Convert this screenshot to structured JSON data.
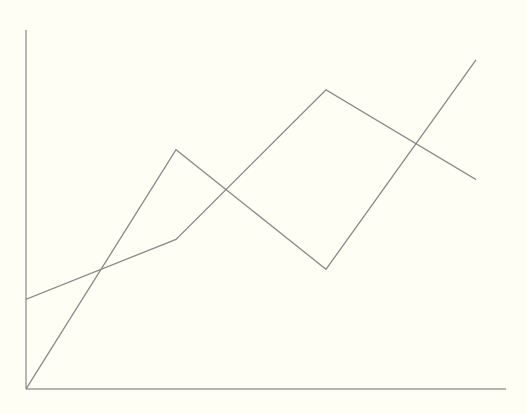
{
  "colors": {
    "background": "#fffef5",
    "axis": "#888888",
    "line": "#888888"
  },
  "chart_data": {
    "type": "line",
    "x": [
      0,
      1,
      2,
      3
    ],
    "series": [
      {
        "values": [
          3,
          5,
          10,
          7
        ]
      },
      {
        "values": [
          0,
          8,
          4,
          11
        ]
      }
    ],
    "xlim": [
      0,
      3.2
    ],
    "ylim": [
      0,
      12
    ],
    "grid": false,
    "legend": "none",
    "title": "",
    "xlabel": "",
    "ylabel": ""
  }
}
